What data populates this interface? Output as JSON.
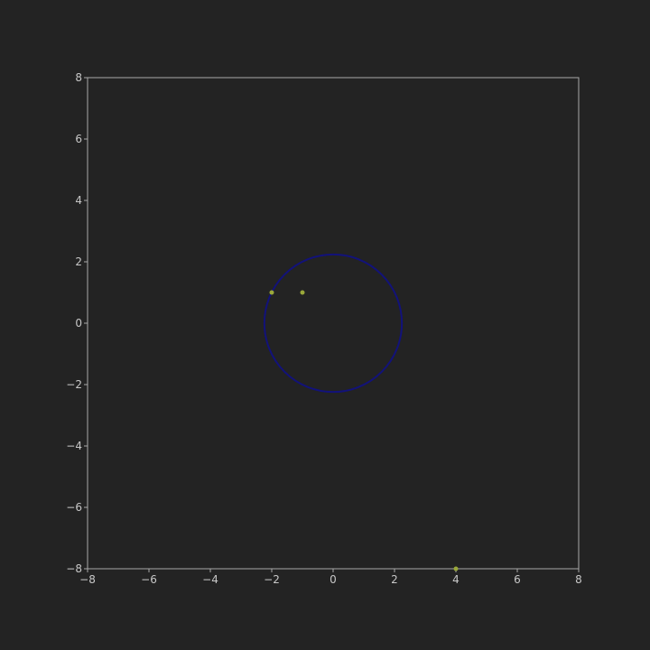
{
  "chart_data": {
    "type": "scatter",
    "title": "",
    "xlabel": "",
    "ylabel": "",
    "xlim": [
      -8,
      8
    ],
    "ylim": [
      -8,
      8
    ],
    "x_ticks": [
      -8,
      -6,
      -4,
      -2,
      0,
      2,
      4,
      6,
      8
    ],
    "y_ticks": [
      -8,
      -6,
      -4,
      -2,
      0,
      2,
      4,
      6,
      8
    ],
    "x_tick_labels": [
      "−8",
      "−6",
      "−4",
      "−2",
      "0",
      "2",
      "4",
      "6",
      "8"
    ],
    "y_tick_labels": [
      "−8",
      "−6",
      "−4",
      "−2",
      "0",
      "2",
      "4",
      "6",
      "8"
    ],
    "grid": false,
    "points": [
      {
        "x": -2,
        "y": 1
      },
      {
        "x": -1,
        "y": 1
      },
      {
        "x": 4,
        "y": -8
      }
    ],
    "circle": {
      "cx": 0,
      "cy": 0,
      "r": 2.24
    },
    "colors": {
      "background": "#232323",
      "axes_frame": "#a8a8a8",
      "tick_text": "#c8c8c8",
      "points": "#9aa83a",
      "circle": "#12127a"
    }
  }
}
